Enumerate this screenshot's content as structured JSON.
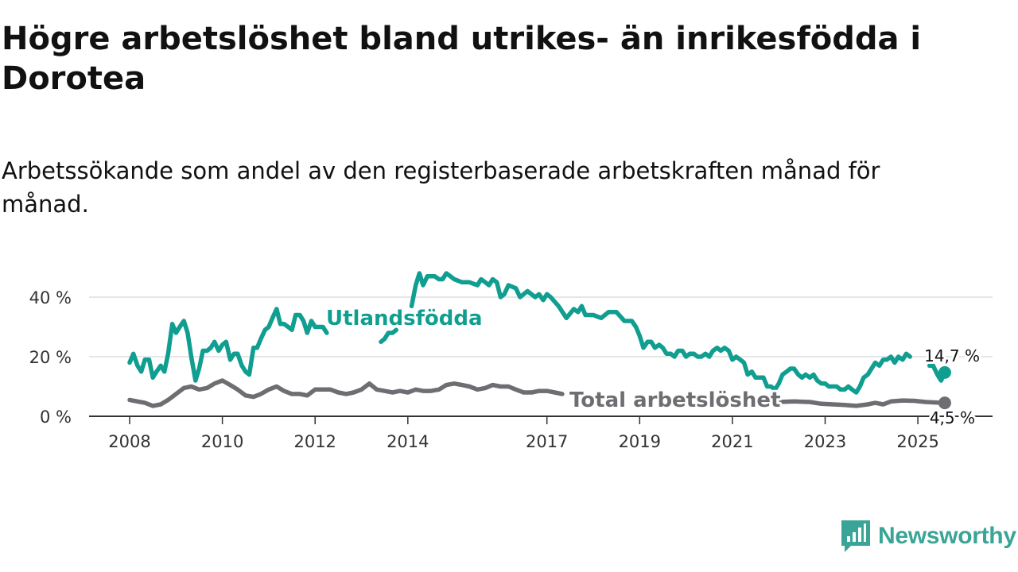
{
  "header": {
    "title": "Högre arbetslöshet bland utrikes- än inrikesfödda i Dorotea",
    "subtitle": "Arbetssökande som andel av den registerbaserade arbetskraften månad för månad."
  },
  "brand": {
    "name": "Newsworthy",
    "color": "#3aa596"
  },
  "colors": {
    "foreign": "#0f9e90",
    "total": "#6e6e72",
    "grid": "#dddddd",
    "axis": "#333333"
  },
  "chart_data": {
    "type": "line",
    "title": "Högre arbetslöshet bland utrikes- än inrikesfödda i Dorotea",
    "subtitle": "Arbetssökande som andel av den registerbaserade arbetskraften månad för månad.",
    "xlabel": "",
    "ylabel": "",
    "x_range": [
      2008.0,
      2025.75
    ],
    "ylim": [
      0,
      45
    ],
    "y_ticks": [
      {
        "value": 0,
        "label": "0 %"
      },
      {
        "value": 20,
        "label": "20 %"
      },
      {
        "value": 40,
        "label": "40 %"
      }
    ],
    "x_ticks": [
      {
        "value": 2008,
        "label": "2008"
      },
      {
        "value": 2010,
        "label": "2010"
      },
      {
        "value": 2012,
        "label": "2012"
      },
      {
        "value": 2014,
        "label": "2014"
      },
      {
        "value": 2017,
        "label": "2017"
      },
      {
        "value": 2019,
        "label": "2019"
      },
      {
        "value": 2021,
        "label": "2021"
      },
      {
        "value": 2023,
        "label": "2023"
      },
      {
        "value": 2025,
        "label": "2025"
      }
    ],
    "grid": true,
    "series": [
      {
        "name": "Utlandsfödda",
        "label": "Utlandsfödda",
        "end_label": "14,7 %",
        "color": "#0f9e90",
        "points": [
          [
            2008.0,
            18
          ],
          [
            2008.08,
            21
          ],
          [
            2008.17,
            17
          ],
          [
            2008.25,
            15
          ],
          [
            2008.33,
            19
          ],
          [
            2008.42,
            19
          ],
          [
            2008.5,
            13
          ],
          [
            2008.58,
            15
          ],
          [
            2008.67,
            17
          ],
          [
            2008.75,
            15
          ],
          [
            2008.83,
            21
          ],
          [
            2008.92,
            31
          ],
          [
            2009.0,
            28
          ],
          [
            2009.08,
            30
          ],
          [
            2009.17,
            32
          ],
          [
            2009.25,
            28
          ],
          [
            2009.33,
            20
          ],
          [
            2009.42,
            12
          ],
          [
            2009.5,
            16
          ],
          [
            2009.58,
            22
          ],
          [
            2009.67,
            22
          ],
          [
            2009.75,
            23
          ],
          [
            2009.83,
            25
          ],
          [
            2009.92,
            22
          ],
          [
            2010.0,
            24
          ],
          [
            2010.08,
            25
          ],
          [
            2010.17,
            19
          ],
          [
            2010.25,
            21
          ],
          [
            2010.33,
            21
          ],
          [
            2010.42,
            17
          ],
          [
            2010.5,
            15
          ],
          [
            2010.58,
            14
          ],
          [
            2010.67,
            23
          ],
          [
            2010.75,
            23
          ],
          [
            2010.83,
            26
          ],
          [
            2010.92,
            29
          ],
          [
            2011.0,
            30
          ],
          [
            2011.08,
            33
          ],
          [
            2011.17,
            36
          ],
          [
            2011.25,
            31
          ],
          [
            2011.33,
            31
          ],
          [
            2011.42,
            30
          ],
          [
            2011.5,
            29
          ],
          [
            2011.58,
            34
          ],
          [
            2011.67,
            34
          ],
          [
            2011.75,
            32
          ],
          [
            2011.83,
            28
          ],
          [
            2011.92,
            32
          ],
          [
            2012.0,
            30
          ],
          [
            2012.08,
            30
          ],
          [
            2012.17,
            30
          ],
          [
            2012.25,
            28
          ],
          null,
          [
            2013.42,
            25
          ],
          [
            2013.5,
            26
          ],
          [
            2013.58,
            28
          ],
          [
            2013.67,
            28
          ],
          [
            2013.75,
            29
          ],
          null,
          [
            2014.08,
            37
          ],
          [
            2014.17,
            44
          ],
          [
            2014.25,
            48
          ],
          [
            2014.33,
            44
          ],
          [
            2014.42,
            47
          ],
          [
            2014.5,
            47
          ],
          [
            2014.58,
            47
          ],
          [
            2014.67,
            46
          ],
          [
            2014.75,
            46
          ],
          [
            2014.83,
            48
          ],
          [
            2014.92,
            47
          ],
          [
            2015.0,
            46
          ],
          [
            2015.17,
            45
          ],
          [
            2015.33,
            45
          ],
          [
            2015.5,
            44
          ],
          [
            2015.58,
            46
          ],
          [
            2015.67,
            45
          ],
          [
            2015.75,
            44
          ],
          [
            2015.83,
            46
          ],
          [
            2015.92,
            45
          ],
          [
            2016.0,
            40
          ],
          [
            2016.08,
            41
          ],
          [
            2016.17,
            44
          ],
          [
            2016.33,
            43
          ],
          [
            2016.42,
            40
          ],
          [
            2016.58,
            42
          ],
          [
            2016.75,
            40
          ],
          [
            2016.83,
            41
          ],
          [
            2016.92,
            39
          ],
          [
            2017.0,
            41
          ],
          [
            2017.08,
            40
          ],
          [
            2017.25,
            37
          ],
          [
            2017.42,
            33
          ],
          [
            2017.58,
            36
          ],
          [
            2017.67,
            35
          ],
          [
            2017.75,
            37
          ],
          [
            2017.83,
            34
          ],
          [
            2018.0,
            34
          ],
          [
            2018.17,
            33
          ],
          [
            2018.33,
            35
          ],
          [
            2018.5,
            35
          ],
          [
            2018.67,
            32
          ],
          [
            2018.83,
            32
          ],
          [
            2018.92,
            30
          ],
          [
            2019.0,
            27
          ],
          [
            2019.08,
            23
          ],
          [
            2019.17,
            25
          ],
          [
            2019.25,
            25
          ],
          [
            2019.33,
            23
          ],
          [
            2019.42,
            24
          ],
          [
            2019.5,
            23
          ],
          [
            2019.58,
            21
          ],
          [
            2019.67,
            21
          ],
          [
            2019.75,
            20
          ],
          [
            2019.83,
            22
          ],
          [
            2019.92,
            22
          ],
          [
            2020.0,
            20
          ],
          [
            2020.08,
            21
          ],
          [
            2020.17,
            21
          ],
          [
            2020.25,
            20
          ],
          [
            2020.33,
            20
          ],
          [
            2020.42,
            21
          ],
          [
            2020.5,
            20
          ],
          [
            2020.58,
            22
          ],
          [
            2020.67,
            23
          ],
          [
            2020.75,
            22
          ],
          [
            2020.83,
            23
          ],
          [
            2020.92,
            22
          ],
          [
            2021.0,
            19
          ],
          [
            2021.08,
            20
          ],
          [
            2021.17,
            19
          ],
          [
            2021.25,
            18
          ],
          [
            2021.33,
            14
          ],
          [
            2021.42,
            15
          ],
          [
            2021.5,
            13
          ],
          [
            2021.58,
            13
          ],
          [
            2021.67,
            13
          ],
          [
            2021.75,
            10
          ],
          [
            2021.83,
            10
          ],
          [
            2021.92,
            9
          ],
          [
            2022.0,
            11
          ],
          [
            2022.08,
            14
          ],
          [
            2022.17,
            15
          ],
          [
            2022.25,
            16
          ],
          [
            2022.33,
            16
          ],
          [
            2022.42,
            14
          ],
          [
            2022.5,
            13
          ],
          [
            2022.58,
            14
          ],
          [
            2022.67,
            13
          ],
          [
            2022.75,
            14
          ],
          [
            2022.83,
            12
          ],
          [
            2022.92,
            11
          ],
          [
            2023.0,
            11
          ],
          [
            2023.08,
            10
          ],
          [
            2023.17,
            10
          ],
          [
            2023.25,
            10
          ],
          [
            2023.33,
            9
          ],
          [
            2023.42,
            9
          ],
          [
            2023.5,
            10
          ],
          [
            2023.58,
            9
          ],
          [
            2023.67,
            8
          ],
          [
            2023.75,
            10
          ],
          [
            2023.83,
            13
          ],
          [
            2023.92,
            14
          ],
          [
            2024.0,
            16
          ],
          [
            2024.08,
            18
          ],
          [
            2024.17,
            17
          ],
          [
            2024.25,
            19
          ],
          [
            2024.33,
            19
          ],
          [
            2024.42,
            20
          ],
          [
            2024.5,
            18
          ],
          [
            2024.58,
            20
          ],
          [
            2024.67,
            19
          ],
          [
            2024.75,
            21
          ],
          [
            2024.83,
            20
          ],
          null,
          [
            2025.25,
            17
          ],
          [
            2025.33,
            17
          ],
          [
            2025.42,
            14
          ],
          [
            2025.5,
            12
          ],
          [
            2025.58,
            14.7
          ]
        ]
      },
      {
        "name": "Total arbetslöshet",
        "label": "Total arbetslöshet",
        "end_label": "4,5 %",
        "color": "#6e6e72",
        "points": [
          [
            2008.0,
            5.5
          ],
          [
            2008.17,
            5
          ],
          [
            2008.33,
            4.5
          ],
          [
            2008.5,
            3.5
          ],
          [
            2008.67,
            4
          ],
          [
            2008.83,
            5.5
          ],
          [
            2009.0,
            7.5
          ],
          [
            2009.17,
            9.5
          ],
          [
            2009.33,
            10
          ],
          [
            2009.5,
            9
          ],
          [
            2009.67,
            9.5
          ],
          [
            2009.83,
            11
          ],
          [
            2010.0,
            12
          ],
          [
            2010.17,
            10.5
          ],
          [
            2010.33,
            9
          ],
          [
            2010.5,
            7
          ],
          [
            2010.67,
            6.5
          ],
          [
            2010.83,
            7.5
          ],
          [
            2011.0,
            9
          ],
          [
            2011.17,
            10
          ],
          [
            2011.33,
            8.5
          ],
          [
            2011.5,
            7.5
          ],
          [
            2011.67,
            7.5
          ],
          [
            2011.83,
            7
          ],
          [
            2012.0,
            9
          ],
          [
            2012.17,
            9
          ],
          [
            2012.33,
            9
          ],
          [
            2012.5,
            8
          ],
          [
            2012.67,
            7.5
          ],
          [
            2012.83,
            8
          ],
          [
            2013.0,
            9
          ],
          [
            2013.17,
            11
          ],
          [
            2013.33,
            9
          ],
          [
            2013.5,
            8.5
          ],
          [
            2013.67,
            8
          ],
          [
            2013.83,
            8.5
          ],
          [
            2014.0,
            8
          ],
          [
            2014.17,
            9
          ],
          [
            2014.33,
            8.5
          ],
          [
            2014.5,
            8.5
          ],
          [
            2014.67,
            9
          ],
          [
            2014.83,
            10.5
          ],
          [
            2015.0,
            11
          ],
          [
            2015.17,
            10.5
          ],
          [
            2015.33,
            10
          ],
          [
            2015.5,
            9
          ],
          [
            2015.67,
            9.5
          ],
          [
            2015.83,
            10.5
          ],
          [
            2016.0,
            10
          ],
          [
            2016.17,
            10
          ],
          [
            2016.33,
            9
          ],
          [
            2016.5,
            8
          ],
          [
            2016.67,
            8
          ],
          [
            2016.83,
            8.5
          ],
          [
            2017.0,
            8.5
          ],
          [
            2017.17,
            8
          ],
          [
            2017.33,
            7.5
          ],
          null,
          [
            2022.0,
            4.8
          ],
          [
            2022.33,
            5
          ],
          [
            2022.67,
            4.8
          ],
          [
            2022.92,
            4.2
          ],
          [
            2023.17,
            4
          ],
          [
            2023.42,
            3.8
          ],
          [
            2023.67,
            3.5
          ],
          [
            2023.92,
            4
          ],
          [
            2024.08,
            4.5
          ],
          [
            2024.25,
            4
          ],
          [
            2024.42,
            5
          ],
          [
            2024.67,
            5.3
          ],
          [
            2024.92,
            5.2
          ],
          [
            2025.17,
            4.8
          ],
          [
            2025.42,
            4.6
          ],
          [
            2025.58,
            4.5
          ]
        ]
      }
    ]
  }
}
